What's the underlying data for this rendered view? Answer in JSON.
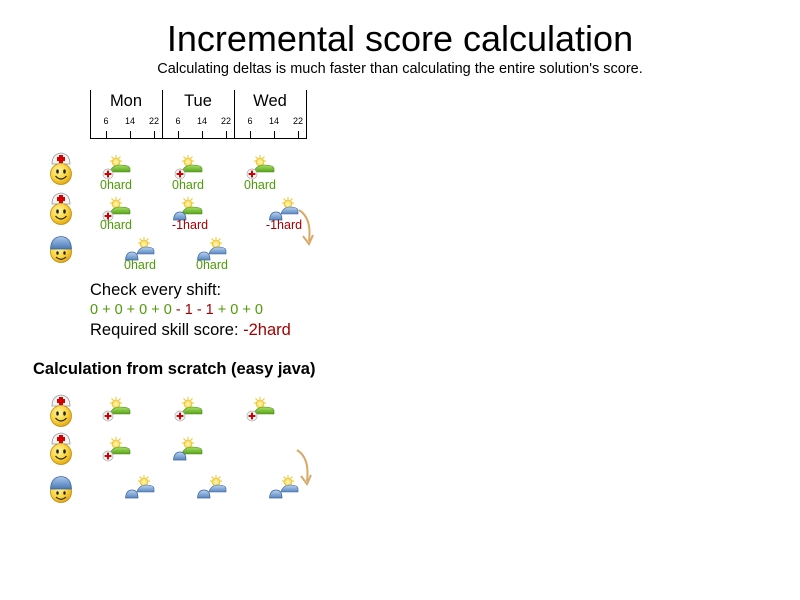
{
  "title": "Incremental score calculation",
  "subtitle": "Calculating deltas is much faster than calculating the entire solution's score.",
  "timeline": {
    "days": [
      "Mon",
      "Tue",
      "Wed"
    ],
    "hours": [
      "6",
      "14",
      "22"
    ]
  },
  "top_scores": {
    "row1": [
      "0hard",
      "0hard",
      "0hard"
    ],
    "row2": [
      "0hard",
      "-1hard",
      "-1hard"
    ],
    "row3": [
      "0hard",
      "0hard"
    ]
  },
  "summary": {
    "check_label": "Check every shift:",
    "sum_parts": [
      "0 + 0 + 0 + 0",
      " - 1 - 1",
      " + 0 + 0"
    ],
    "required_label": "Required skill score: ",
    "required_value": "-2hard"
  },
  "scratch_heading": "Calculation from scratch (easy java)",
  "icons": {
    "employee_nurse": "nurse-smiley-icon",
    "employee_worker": "worker-smiley-icon",
    "shift_nurse": "nurse-shift-icon",
    "shift_worker": "worker-shift-icon",
    "move": "curved-arrow-icon"
  },
  "colors": {
    "ok": "#4e9a06",
    "broken": "#a40000",
    "arrow": "#d8a968"
  }
}
